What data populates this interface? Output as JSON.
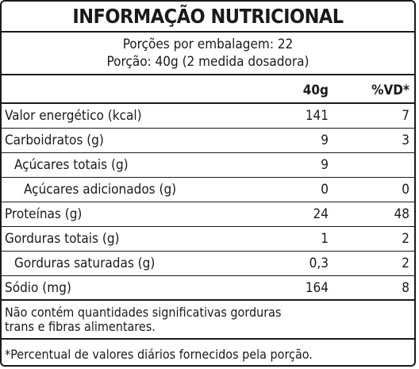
{
  "label": {
    "title": "INFORMAÇÃO NUTRICIONAL",
    "portions_per_package": "Porções por embalagem: 22",
    "portion": "Porção: 40g (2 medida dosadora)",
    "col_qty": "40g",
    "col_vd": "%VD*",
    "rows": [
      {
        "name": "Valor energético (kcal)",
        "qty": "141",
        "vd": "7"
      },
      {
        "name": "Carboidratos (g)",
        "qty": "9",
        "vd": "3"
      },
      {
        "name": "Açúcares totais (g)",
        "qty": "9",
        "vd": ""
      },
      {
        "name": "Açúcares adicionados (g)",
        "qty": "0",
        "vd": "0"
      },
      {
        "name": "Proteínas (g)",
        "qty": "24",
        "vd": "48"
      },
      {
        "name": "Gorduras totais (g)",
        "qty": "1",
        "vd": "2"
      },
      {
        "name": "Gorduras saturadas (g)",
        "qty": "0,3",
        "vd": "2"
      },
      {
        "name": "Sódio (mg)",
        "qty": "164",
        "vd": "8"
      }
    ],
    "note_line1": "Não contém quantidades significativas gorduras",
    "note_line2": "trans e fibras alimentares.",
    "footnote": "*Percentual de valores diários fornecidos pela porção."
  }
}
